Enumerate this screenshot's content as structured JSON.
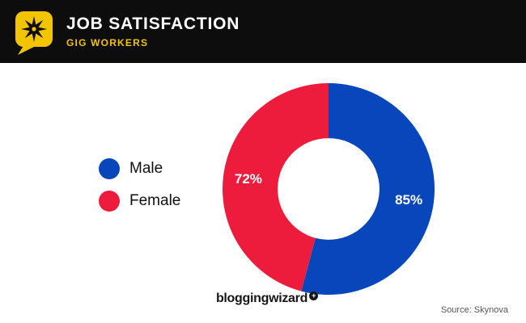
{
  "header": {
    "title": "JOB SATISFACTION",
    "subtitle": "GIG WORKERS"
  },
  "theme": {
    "header_bg": "#0d0d0d",
    "accent_yellow": "#f3c400",
    "male_blue": "#0847bb",
    "female_red": "#ee1c3c"
  },
  "chart_data": {
    "type": "pie",
    "variant": "donut",
    "title": "JOB SATISFACTION",
    "subtitle": "GIG WORKERS",
    "categories": [
      "Male",
      "Female"
    ],
    "values": [
      85,
      72
    ],
    "labels": [
      "85%",
      "72%"
    ],
    "colors": [
      "#0847bb",
      "#ee1c3c"
    ],
    "start_angle_deg": 0,
    "direction": "clockwise",
    "legend_position": "left",
    "inner_radius_ratio": 0.48
  },
  "footer": {
    "brand": "bloggingwizard",
    "plus_glyph": "+",
    "source": "Source: Skynova"
  }
}
